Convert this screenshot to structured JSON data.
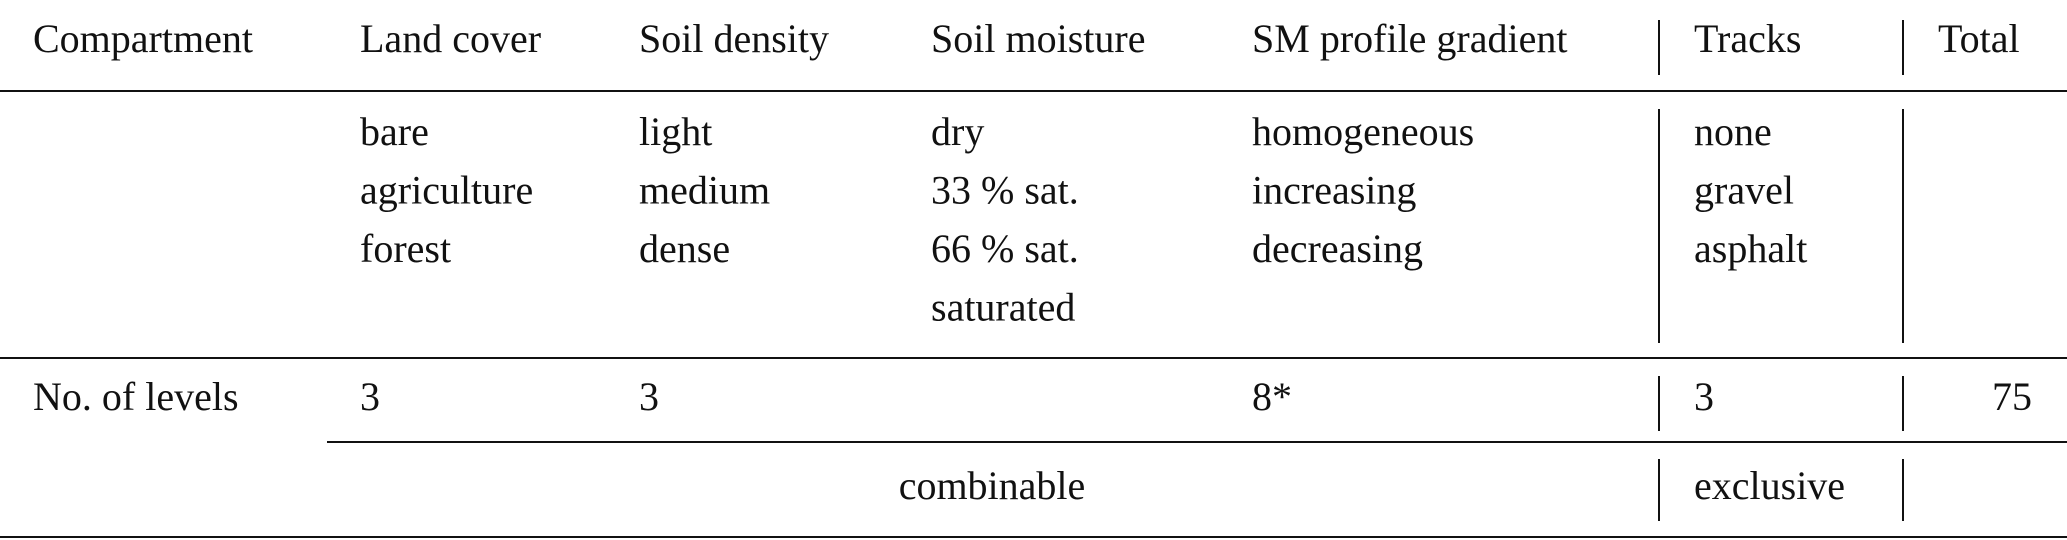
{
  "table": {
    "header": [
      "Compartment",
      "Land cover",
      "Soil density",
      "Soil moisture",
      "SM profile gradient",
      "Tracks",
      "Total"
    ],
    "options": [
      [
        "bare",
        "agriculture",
        "forest"
      ],
      [
        "light",
        "medium",
        "dense"
      ],
      [
        "dry",
        "33 % sat.",
        "66 % sat.",
        "saturated"
      ],
      [
        "homogeneous",
        "increasing",
        "decreasing"
      ],
      [
        "none",
        "gravel",
        "asphalt"
      ]
    ],
    "levels": {
      "label": "No. of levels",
      "land_cover": 3,
      "soil_density": 3,
      "sm_profile_gradient": "8*",
      "tracks": 3,
      "total": 75
    },
    "footer": {
      "combinable": "combinable",
      "exclusive": "exclusive"
    }
  }
}
